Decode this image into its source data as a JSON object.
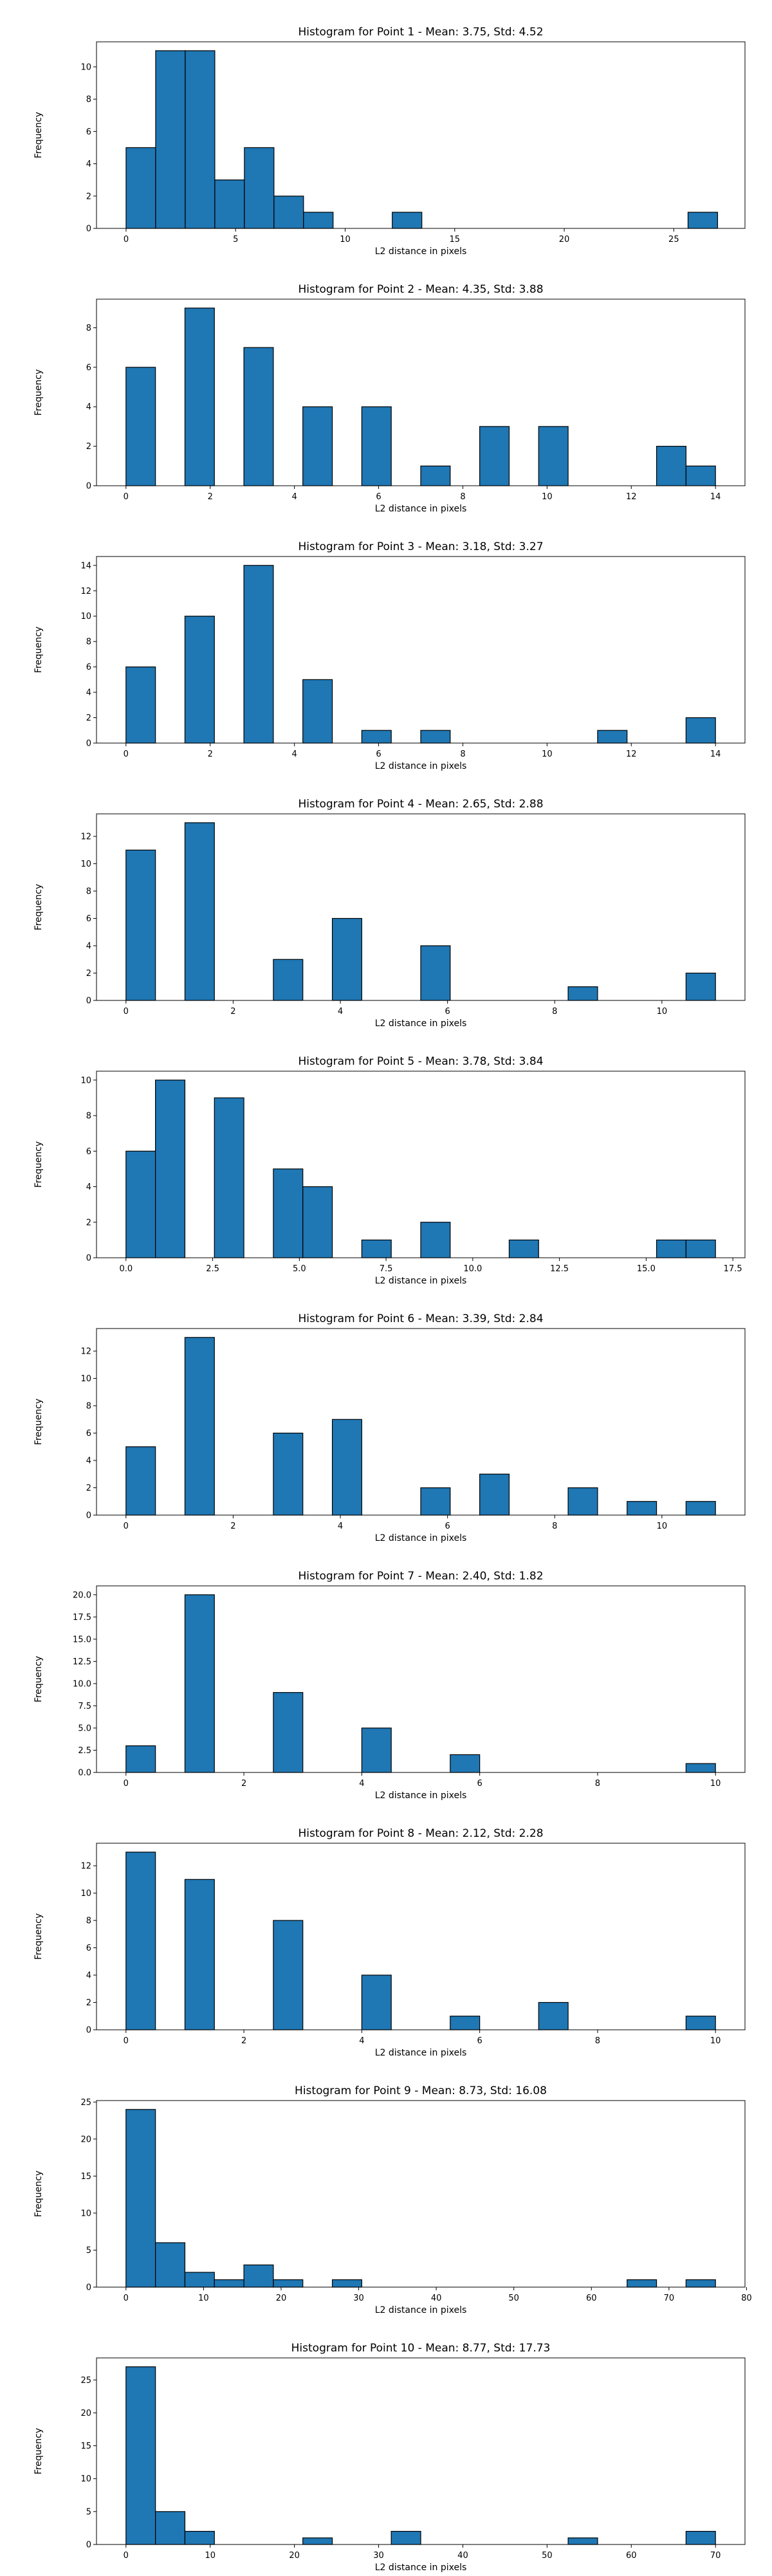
{
  "chart_data": [
    {
      "type": "bar",
      "title": "Histogram for Point 1 - Mean: 3.75, Std: 4.52",
      "xlabel": "L2 distance in pixels",
      "ylabel": "Frequency",
      "xlim": [
        -1.35,
        28.25
      ],
      "ylim": [
        0,
        11.55
      ],
      "bin_edges": [
        0,
        1.35,
        2.7,
        4.05,
        5.4,
        6.75,
        8.1,
        9.45,
        10.8,
        12.15,
        13.5,
        14.85,
        16.2,
        17.55,
        18.9,
        20.25,
        21.6,
        22.95,
        24.3,
        25.65,
        27.0
      ],
      "counts": [
        5,
        11,
        11,
        3,
        5,
        2,
        1,
        0,
        0,
        1,
        0,
        0,
        0,
        0,
        0,
        0,
        0,
        0,
        0,
        1
      ],
      "xticks": [
        0,
        5,
        10,
        15,
        20,
        25
      ],
      "xticklabels": [
        "0",
        "5",
        "10",
        "15",
        "20",
        "25"
      ],
      "yticks": [
        0,
        2,
        4,
        6,
        8,
        10
      ],
      "yticklabels": [
        "0",
        "2",
        "4",
        "6",
        "8",
        "10"
      ],
      "bar_color": "#1f77b4",
      "edge_color": "#000000"
    },
    {
      "type": "bar",
      "title": "Histogram for Point 2 - Mean: 4.35, Std: 3.88",
      "xlabel": "L2 distance in pixels",
      "ylabel": "Frequency",
      "xlim": [
        -0.7,
        14.7
      ],
      "ylim": [
        0,
        9.45
      ],
      "bin_edges": [
        0,
        0.7,
        1.4,
        2.1,
        2.8,
        3.5,
        4.2,
        4.9,
        5.6,
        6.3,
        7.0,
        7.7,
        8.4,
        9.1,
        9.8,
        10.5,
        11.2,
        11.9,
        12.6,
        13.3,
        14.0
      ],
      "counts": [
        6,
        0,
        9,
        0,
        7,
        0,
        4,
        0,
        4,
        0,
        1,
        0,
        3,
        0,
        3,
        0,
        0,
        0,
        2,
        1
      ],
      "xticks": [
        0,
        2,
        4,
        6,
        8,
        10,
        12,
        14
      ],
      "xticklabels": [
        "0",
        "2",
        "4",
        "6",
        "8",
        "10",
        "12",
        "14"
      ],
      "yticks": [
        0,
        2,
        4,
        6,
        8
      ],
      "yticklabels": [
        "0",
        "2",
        "4",
        "6",
        "8"
      ],
      "bar_color": "#1f77b4",
      "edge_color": "#000000"
    },
    {
      "type": "bar",
      "title": "Histogram for Point 3 - Mean: 3.18, Std: 3.27",
      "xlabel": "L2 distance in pixels",
      "ylabel": "Frequency",
      "xlim": [
        -0.7,
        14.7
      ],
      "ylim": [
        0,
        14.7
      ],
      "bin_edges": [
        0,
        0.7,
        1.4,
        2.1,
        2.8,
        3.5,
        4.2,
        4.9,
        5.6,
        6.3,
        7.0,
        7.7,
        8.4,
        9.1,
        9.8,
        10.5,
        11.2,
        11.9,
        12.6,
        13.3,
        14.0
      ],
      "counts": [
        6,
        0,
        10,
        0,
        14,
        0,
        5,
        0,
        1,
        0,
        1,
        0,
        0,
        0,
        0,
        0,
        1,
        0,
        0,
        2
      ],
      "xticks": [
        0,
        2,
        4,
        6,
        8,
        10,
        12,
        14
      ],
      "xticklabels": [
        "0",
        "2",
        "4",
        "6",
        "8",
        "10",
        "12",
        "14"
      ],
      "yticks": [
        0,
        2,
        4,
        6,
        8,
        10,
        12,
        14
      ],
      "yticklabels": [
        "0",
        "2",
        "4",
        "6",
        "8",
        "10",
        "12",
        "14"
      ],
      "bar_color": "#1f77b4",
      "edge_color": "#000000"
    },
    {
      "type": "bar",
      "title": "Histogram for Point 4 - Mean: 2.65, Std: 2.88",
      "xlabel": "L2 distance in pixels",
      "ylabel": "Frequency",
      "xlim": [
        -0.55,
        11.55
      ],
      "ylim": [
        0,
        13.65
      ],
      "bin_edges": [
        0,
        0.55,
        1.1,
        1.65,
        2.2,
        2.75,
        3.3,
        3.85,
        4.4,
        4.95,
        5.5,
        6.05,
        6.6,
        7.15,
        7.7,
        8.25,
        8.8,
        9.35,
        9.9,
        10.45,
        11.0
      ],
      "counts": [
        11,
        0,
        13,
        0,
        0,
        3,
        0,
        6,
        0,
        0,
        4,
        0,
        0,
        0,
        0,
        1,
        0,
        0,
        0,
        2
      ],
      "xticks": [
        0,
        2,
        4,
        6,
        8,
        10
      ],
      "xticklabels": [
        "0",
        "2",
        "4",
        "6",
        "8",
        "10"
      ],
      "yticks": [
        0,
        2,
        4,
        6,
        8,
        10,
        12
      ],
      "yticklabels": [
        "0",
        "2",
        "4",
        "6",
        "8",
        "10",
        "12"
      ],
      "bar_color": "#1f77b4",
      "edge_color": "#000000"
    },
    {
      "type": "bar",
      "title": "Histogram for Point 5 - Mean: 3.78, Std: 3.84",
      "xlabel": "L2 distance in pixels",
      "ylabel": "Frequency",
      "xlim": [
        -0.85,
        17.85
      ],
      "ylim": [
        0,
        10.5
      ],
      "bin_edges": [
        0,
        0.85,
        1.7,
        2.55,
        3.4,
        4.25,
        5.1,
        5.95,
        6.8,
        7.65,
        8.5,
        9.35,
        10.2,
        11.05,
        11.9,
        12.75,
        13.6,
        14.45,
        15.3,
        16.15,
        17.0
      ],
      "counts": [
        6,
        10,
        0,
        9,
        0,
        5,
        4,
        0,
        1,
        0,
        2,
        0,
        0,
        1,
        0,
        0,
        0,
        0,
        1,
        1
      ],
      "xticks": [
        0,
        2.5,
        5,
        7.5,
        10,
        12.5,
        15,
        17.5
      ],
      "xticklabels": [
        "0.0",
        "2.5",
        "5.0",
        "7.5",
        "10.0",
        "12.5",
        "15.0",
        "17.5"
      ],
      "yticks": [
        0,
        2,
        4,
        6,
        8,
        10
      ],
      "yticklabels": [
        "0",
        "2",
        "4",
        "6",
        "8",
        "10"
      ],
      "bar_color": "#1f77b4",
      "edge_color": "#000000"
    },
    {
      "type": "bar",
      "title": "Histogram for Point 6 - Mean: 3.39, Std: 2.84",
      "xlabel": "L2 distance in pixels",
      "ylabel": "Frequency",
      "xlim": [
        -0.55,
        11.55
      ],
      "ylim": [
        0,
        13.65
      ],
      "bin_edges": [
        0,
        0.55,
        1.1,
        1.65,
        2.2,
        2.75,
        3.3,
        3.85,
        4.4,
        4.95,
        5.5,
        6.05,
        6.6,
        7.15,
        7.7,
        8.25,
        8.8,
        9.35,
        9.9,
        10.45,
        11.0
      ],
      "counts": [
        5,
        0,
        13,
        0,
        0,
        6,
        0,
        7,
        0,
        0,
        2,
        0,
        3,
        0,
        0,
        2,
        0,
        1,
        0,
        1
      ],
      "xticks": [
        0,
        2,
        4,
        6,
        8,
        10
      ],
      "xticklabels": [
        "0",
        "2",
        "4",
        "6",
        "8",
        "10"
      ],
      "yticks": [
        0,
        2,
        4,
        6,
        8,
        10,
        12
      ],
      "yticklabels": [
        "0",
        "2",
        "4",
        "6",
        "8",
        "10",
        "12"
      ],
      "bar_color": "#1f77b4",
      "edge_color": "#000000"
    },
    {
      "type": "bar",
      "title": "Histogram for Point 7 - Mean: 2.40, Std: 1.82",
      "xlabel": "L2 distance in pixels",
      "ylabel": "Frequency",
      "xlim": [
        -0.5,
        10.5
      ],
      "ylim": [
        0,
        21.0
      ],
      "bin_edges": [
        0,
        0.5,
        1.0,
        1.5,
        2.0,
        2.5,
        3.0,
        3.5,
        4.0,
        4.5,
        5.0,
        5.5,
        6.0,
        6.5,
        7.0,
        7.5,
        8.0,
        8.5,
        9.0,
        9.5,
        10.0
      ],
      "counts": [
        3,
        0,
        20,
        0,
        0,
        9,
        0,
        0,
        5,
        0,
        0,
        2,
        0,
        0,
        0,
        0,
        0,
        0,
        0,
        1
      ],
      "xticks": [
        0,
        2,
        4,
        6,
        8,
        10
      ],
      "xticklabels": [
        "0",
        "2",
        "4",
        "6",
        "8",
        "10"
      ],
      "yticks": [
        0,
        2.5,
        5,
        7.5,
        10,
        12.5,
        15,
        17.5,
        20
      ],
      "yticklabels": [
        "0.0",
        "2.5",
        "5.0",
        "7.5",
        "10.0",
        "12.5",
        "15.0",
        "17.5",
        "20.0"
      ],
      "bar_color": "#1f77b4",
      "edge_color": "#000000"
    },
    {
      "type": "bar",
      "title": "Histogram for Point 8 - Mean: 2.12, Std: 2.28",
      "xlabel": "L2 distance in pixels",
      "ylabel": "Frequency",
      "xlim": [
        -0.5,
        10.5
      ],
      "ylim": [
        0,
        13.65
      ],
      "bin_edges": [
        0,
        0.5,
        1.0,
        1.5,
        2.0,
        2.5,
        3.0,
        3.5,
        4.0,
        4.5,
        5.0,
        5.5,
        6.0,
        6.5,
        7.0,
        7.5,
        8.0,
        8.5,
        9.0,
        9.5,
        10.0
      ],
      "counts": [
        13,
        0,
        11,
        0,
        0,
        8,
        0,
        0,
        4,
        0,
        0,
        1,
        0,
        0,
        2,
        0,
        0,
        0,
        0,
        1
      ],
      "xticks": [
        0,
        2,
        4,
        6,
        8,
        10
      ],
      "xticklabels": [
        "0",
        "2",
        "4",
        "6",
        "8",
        "10"
      ],
      "yticks": [
        0,
        2,
        4,
        6,
        8,
        10,
        12
      ],
      "yticklabels": [
        "0",
        "2",
        "4",
        "6",
        "8",
        "10",
        "12"
      ],
      "bar_color": "#1f77b4",
      "edge_color": "#000000"
    },
    {
      "type": "bar",
      "title": "Histogram for Point 9 - Mean: 8.73, Std: 16.08",
      "xlabel": "L2 distance in pixels",
      "ylabel": "Frequency",
      "xlim": [
        -3.8,
        79.8
      ],
      "ylim": [
        0,
        25.2
      ],
      "bin_edges": [
        0,
        3.8,
        7.6,
        11.4,
        15.2,
        19.0,
        22.8,
        26.6,
        30.4,
        34.2,
        38.0,
        41.8,
        45.6,
        49.4,
        53.2,
        57.0,
        60.8,
        64.6,
        68.4,
        72.2,
        76.0
      ],
      "counts": [
        24,
        6,
        2,
        1,
        3,
        1,
        0,
        1,
        0,
        0,
        0,
        0,
        0,
        0,
        0,
        0,
        0,
        1,
        0,
        1
      ],
      "xticks": [
        0,
        10,
        20,
        30,
        40,
        50,
        60,
        70,
        80
      ],
      "xticklabels": [
        "0",
        "10",
        "20",
        "30",
        "40",
        "50",
        "60",
        "70",
        "80"
      ],
      "yticks": [
        0,
        5,
        10,
        15,
        20,
        25
      ],
      "yticklabels": [
        "0",
        "5",
        "10",
        "15",
        "20",
        "25"
      ],
      "bar_color": "#1f77b4",
      "edge_color": "#000000"
    },
    {
      "type": "bar",
      "title": "Histogram for Point 10 - Mean: 8.77, Std: 17.73",
      "xlabel": "L2 distance in pixels",
      "ylabel": "Frequency",
      "xlim": [
        -3.5,
        73.5
      ],
      "ylim": [
        0,
        28.35
      ],
      "bin_edges": [
        0,
        3.5,
        7.0,
        10.5,
        14.0,
        17.5,
        21.0,
        24.5,
        28.0,
        31.5,
        35.0,
        38.5,
        42.0,
        45.5,
        49.0,
        52.5,
        56.0,
        59.5,
        63.0,
        66.5,
        70.0
      ],
      "counts": [
        27,
        5,
        2,
        0,
        0,
        0,
        1,
        0,
        0,
        2,
        0,
        0,
        0,
        0,
        0,
        1,
        0,
        0,
        0,
        2
      ],
      "xticks": [
        0,
        10,
        20,
        30,
        40,
        50,
        60,
        70
      ],
      "xticklabels": [
        "0",
        "10",
        "20",
        "30",
        "40",
        "50",
        "60",
        "70"
      ],
      "yticks": [
        0,
        5,
        10,
        15,
        20,
        25
      ],
      "yticklabels": [
        "0",
        "5",
        "10",
        "15",
        "20",
        "25"
      ],
      "bar_color": "#1f77b4",
      "edge_color": "#000000"
    }
  ]
}
